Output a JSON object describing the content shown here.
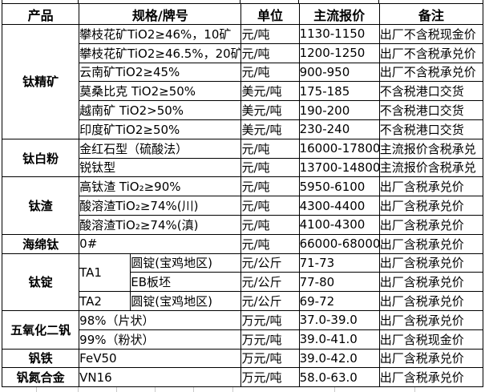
{
  "colors": {
    "border": "#000000",
    "text": "#000000",
    "background": "#ffffff",
    "faint_gridline": "#c9c9c9"
  },
  "chart_data": {
    "type": "table",
    "columns": [
      "产品",
      "规格/牌号",
      "单位",
      "主流报价",
      "备注"
    ],
    "groups": [
      {
        "product": "钛精矿",
        "rows": [
          {
            "spec": "攀枝花矿TiO2≥46%，10矿",
            "unit": "元/吨",
            "price": "1130-1150",
            "note": "出厂不含税现金价"
          },
          {
            "spec": "攀枝花矿TiO2≥46.5%，20矿",
            "unit": "元/吨",
            "price": "1200-1250",
            "note": "出厂不含税承兑价"
          },
          {
            "spec": "云南矿TiO2≥45%",
            "unit": "元/吨",
            "price": "900-950",
            "note": "出厂不含税承兑价"
          },
          {
            "spec": "莫桑比克 TiO2≥50%",
            "unit": "美元/吨",
            "price": "175-185",
            "note": "不含税港口交货"
          },
          {
            "spec": "越南矿 TiO2>50%",
            "unit": "美元/吨",
            "price": "190-200",
            "note": "不含税港口交货"
          },
          {
            "spec": "印度矿TiO2≥50%",
            "unit": "美元/吨",
            "price": "230-240",
            "note": "不含税港口交货"
          }
        ]
      },
      {
        "product": "钛白粉",
        "rows": [
          {
            "spec": "金红石型（硫酸法）",
            "unit": "元/吨",
            "price": "16000-17800",
            "note": "主流报价含税承兑"
          },
          {
            "spec": "锐钛型",
            "unit": "元/吨",
            "price": "13700-14800",
            "note": "主流报价含税承兑"
          }
        ]
      },
      {
        "product": "钛渣",
        "rows": [
          {
            "spec": "高钛渣 TiO₂≥90%",
            "unit": "元/吨",
            "price": "5950-6100",
            "note": "出厂含税承兑价"
          },
          {
            "spec": "酸溶渣TiO₂≥74%(川)",
            "unit": "元/吨",
            "price": "4300-4400",
            "note": "出厂含税承兑价"
          },
          {
            "spec": "酸溶渣TiO₂≥74%(滇)",
            "unit": "元/吨",
            "price": "4100-4300",
            "note": "出厂含税承兑价"
          }
        ]
      },
      {
        "product": "海绵钛",
        "rows": [
          {
            "spec": "0#",
            "unit": "元/吨",
            "price": "66000-68000",
            "note": "出厂含税承兑价"
          }
        ]
      },
      {
        "product": "钛锭",
        "rows": [
          {
            "grade": "TA1",
            "grade_rowspan": 2,
            "form": "圆锭(宝鸡地区)",
            "unit": "元/公斤",
            "price": "71-73",
            "note": "出厂含税承兑价"
          },
          {
            "form": "EB板坯",
            "unit": "元/公斤",
            "price": "77-80",
            "note": "出厂含税承兑价"
          },
          {
            "grade": "TA2",
            "grade_rowspan": 1,
            "form": "圆锭(宝鸡地区)",
            "unit": "元/公斤",
            "price": "69-72",
            "note": "出厂含税承兑价"
          }
        ]
      },
      {
        "product": "五氧化二钒",
        "rows": [
          {
            "spec": "98%（片状）",
            "unit": "万元/吨",
            "price": "37.0-39.0",
            "note": "出厂含税承兑价"
          },
          {
            "spec": "99%（粉状）",
            "unit": "万元/吨",
            "price": "39.0-41.0",
            "note": "出厂含税现金价"
          }
        ]
      },
      {
        "product": "钒铁",
        "rows": [
          {
            "spec": "FeV50",
            "unit": "万元/吨",
            "price": "39.0-42.0",
            "note": "出厂含税承兑价"
          }
        ]
      },
      {
        "product": "钒氮合金",
        "rows": [
          {
            "spec": "VN16",
            "unit": "万元/吨",
            "price": "58.0-63.0",
            "note": "出厂含税承兑价"
          }
        ]
      }
    ]
  }
}
